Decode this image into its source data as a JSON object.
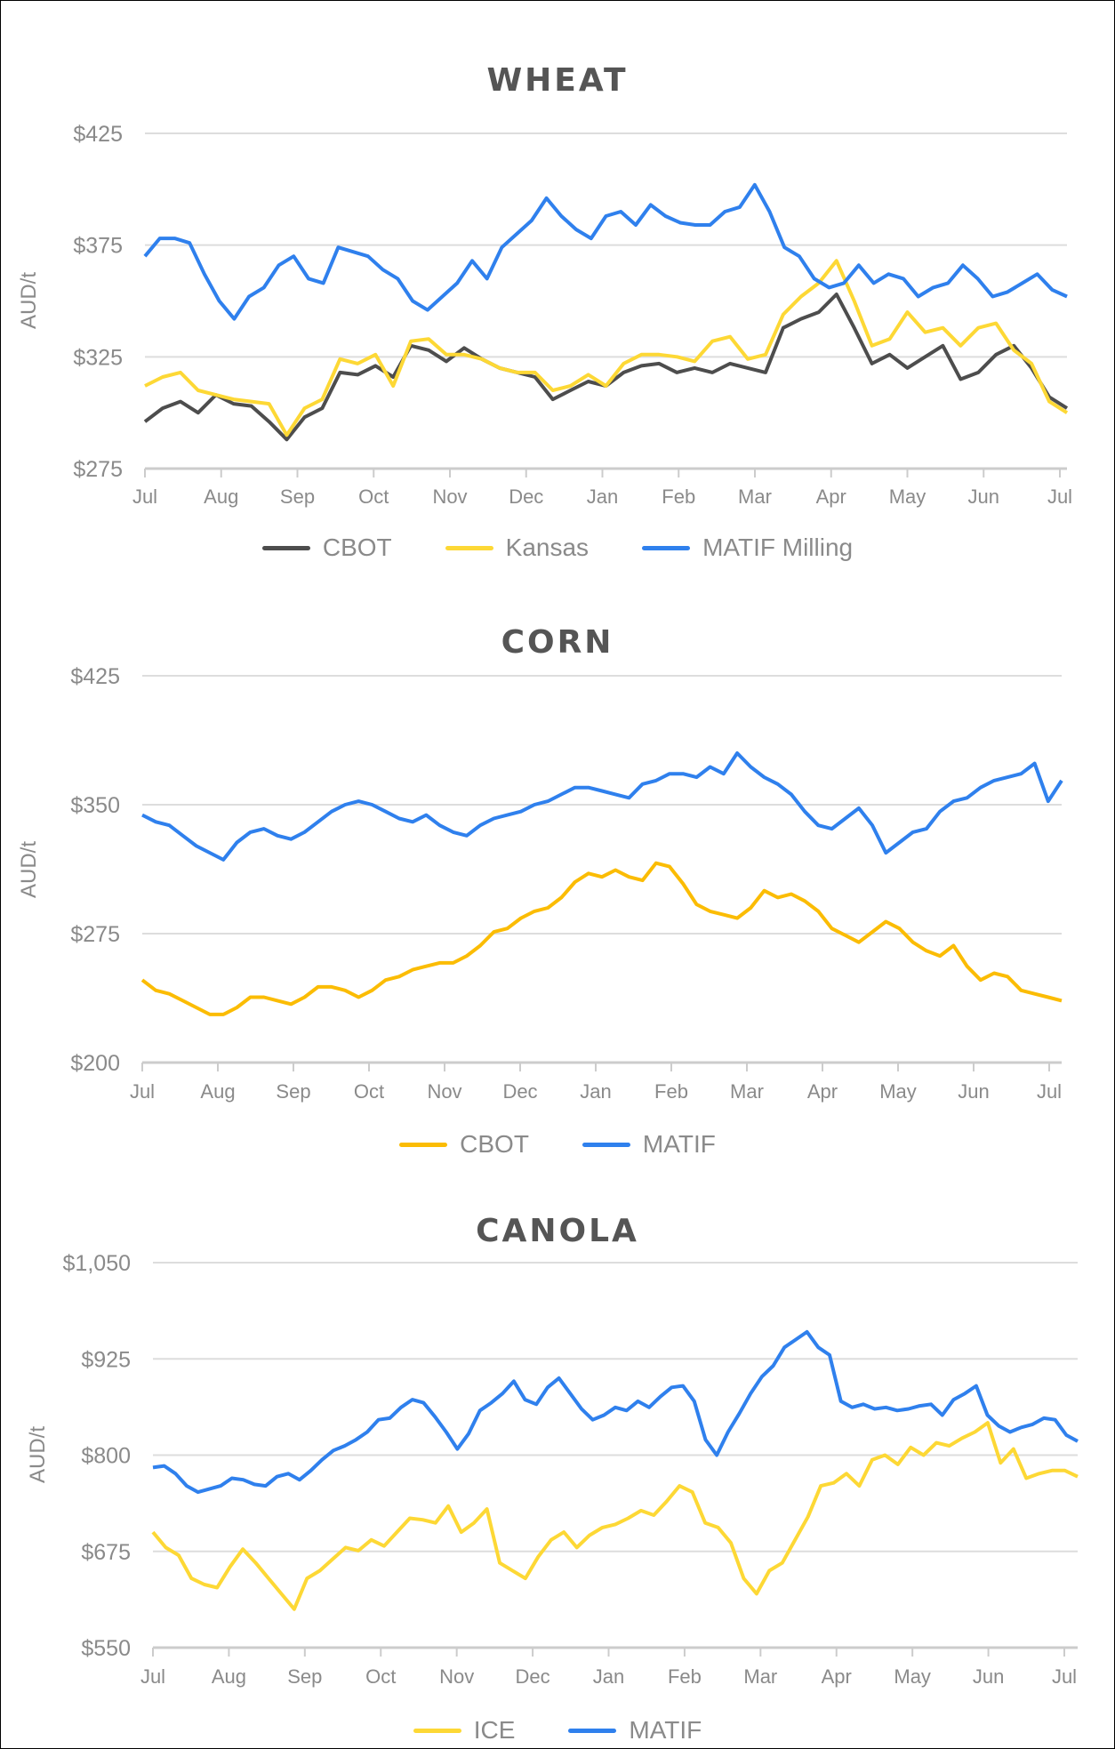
{
  "chart_data": [
    {
      "type": "line",
      "title": "WHEAT",
      "xlabel": "",
      "ylabel": "AUD/t",
      "ylim": [
        275,
        425
      ],
      "yticks": [
        "$425",
        "$375",
        "$325",
        "$275"
      ],
      "ytick_values": [
        425,
        375,
        325,
        275
      ],
      "categories": [
        "Jul",
        "Aug",
        "Sep",
        "Oct",
        "Nov",
        "Dec",
        "Jan",
        "Feb",
        "Mar",
        "Apr",
        "May",
        "Jun",
        "Jul"
      ],
      "grid": true,
      "legend_position": "bottom",
      "series": [
        {
          "name": "CBOT",
          "color": "#4d4d4d",
          "values": [
            296,
            302,
            305,
            300,
            308,
            304,
            303,
            296,
            288,
            298,
            302,
            318,
            317,
            321,
            316,
            330,
            328,
            323,
            329,
            324,
            320,
            318,
            316,
            306,
            310,
            314,
            312,
            318,
            321,
            322,
            318,
            320,
            318,
            322,
            320,
            318,
            338,
            342,
            345,
            353,
            338,
            322,
            326,
            320,
            325,
            330,
            315,
            318,
            326,
            330,
            320,
            307,
            302
          ]
        },
        {
          "name": "Kansas",
          "color": "#fdd835",
          "values": [
            312,
            316,
            318,
            310,
            308,
            306,
            305,
            304,
            290,
            302,
            306,
            324,
            322,
            326,
            312,
            332,
            333,
            326,
            326,
            324,
            320,
            318,
            318,
            310,
            312,
            317,
            312,
            322,
            326,
            326,
            325,
            323,
            332,
            334,
            324,
            326,
            344,
            352,
            358,
            368,
            350,
            330,
            333,
            345,
            336,
            338,
            330,
            338,
            340,
            328,
            322,
            305,
            300
          ]
        },
        {
          "name": "MATIF Milling",
          "color": "#2f80ed",
          "values": [
            370,
            378,
            378,
            376,
            362,
            350,
            342,
            352,
            356,
            366,
            370,
            360,
            358,
            374,
            372,
            370,
            364,
            360,
            350,
            346,
            352,
            358,
            368,
            360,
            374,
            380,
            386,
            396,
            388,
            382,
            378,
            388,
            390,
            384,
            393,
            388,
            385,
            384,
            384,
            390,
            392,
            402,
            390,
            374,
            370,
            360,
            356,
            358,
            366,
            358,
            362,
            360,
            352,
            356,
            358,
            366,
            360,
            352,
            354,
            358,
            362,
            355,
            352
          ]
        }
      ]
    },
    {
      "type": "line",
      "title": "CORN",
      "xlabel": "",
      "ylabel": "AUD/t",
      "ylim": [
        200,
        425
      ],
      "yticks": [
        "$425",
        "$350",
        "$275",
        "$200"
      ],
      "ytick_values": [
        425,
        350,
        275,
        200
      ],
      "categories": [
        "Jul",
        "Aug",
        "Sep",
        "Oct",
        "Nov",
        "Dec",
        "Jan",
        "Feb",
        "Mar",
        "Apr",
        "May",
        "Jun",
        "Jul"
      ],
      "grid": true,
      "legend_position": "bottom",
      "series": [
        {
          "name": "CBOT",
          "color": "#fbbc04",
          "values": [
            248,
            242,
            240,
            236,
            232,
            228,
            228,
            232,
            238,
            238,
            236,
            234,
            238,
            244,
            244,
            242,
            238,
            242,
            248,
            250,
            254,
            256,
            258,
            258,
            262,
            268,
            276,
            278,
            284,
            288,
            290,
            296,
            305,
            310,
            308,
            312,
            308,
            306,
            316,
            314,
            304,
            292,
            288,
            286,
            284,
            290,
            300,
            296,
            298,
            294,
            288,
            278,
            274,
            270,
            276,
            282,
            278,
            270,
            265,
            262,
            268,
            256,
            248,
            252,
            250,
            242,
            240,
            238,
            236
          ]
        },
        {
          "name": "MATIF",
          "color": "#2f80ed",
          "values": [
            344,
            340,
            338,
            332,
            326,
            322,
            318,
            328,
            334,
            336,
            332,
            330,
            334,
            340,
            346,
            350,
            352,
            350,
            346,
            342,
            340,
            344,
            338,
            334,
            332,
            338,
            342,
            344,
            346,
            350,
            352,
            356,
            360,
            360,
            358,
            356,
            354,
            362,
            364,
            368,
            368,
            366,
            372,
            368,
            380,
            372,
            366,
            362,
            356,
            346,
            338,
            336,
            342,
            348,
            338,
            322,
            328,
            334,
            336,
            346,
            352,
            354,
            360,
            364,
            366,
            368,
            374,
            352,
            364
          ]
        }
      ]
    },
    {
      "type": "line",
      "title": "CANOLA",
      "xlabel": "",
      "ylabel": "AUD/t",
      "ylim": [
        550,
        1050
      ],
      "yticks": [
        "$1,050",
        "$925",
        "$800",
        "$675",
        "$550"
      ],
      "ytick_values": [
        1050,
        925,
        800,
        675,
        550
      ],
      "categories": [
        "Jul",
        "Aug",
        "Sep",
        "Oct",
        "Nov",
        "Dec",
        "Jan",
        "Feb",
        "Mar",
        "Apr",
        "May",
        "Jun",
        "Jul"
      ],
      "grid": true,
      "legend_position": "bottom",
      "series": [
        {
          "name": "ICE",
          "color": "#fdd835",
          "values": [
            700,
            680,
            670,
            640,
            632,
            628,
            655,
            678,
            660,
            640,
            620,
            600,
            640,
            650,
            665,
            680,
            676,
            690,
            682,
            700,
            718,
            716,
            712,
            734,
            700,
            712,
            730,
            660,
            650,
            640,
            668,
            690,
            700,
            680,
            696,
            706,
            710,
            718,
            728,
            722,
            740,
            760,
            752,
            712,
            706,
            686,
            640,
            620,
            650,
            660,
            690,
            720,
            760,
            764,
            776,
            760,
            794,
            800,
            788,
            810,
            800,
            816,
            812,
            822,
            830,
            842,
            790,
            808,
            770,
            776,
            780,
            780,
            772
          ]
        },
        {
          "name": "MATIF",
          "color": "#2f80ed",
          "values": [
            784,
            786,
            776,
            760,
            752,
            756,
            760,
            770,
            768,
            762,
            760,
            772,
            776,
            768,
            780,
            794,
            806,
            812,
            820,
            830,
            846,
            848,
            862,
            872,
            868,
            850,
            830,
            808,
            828,
            858,
            868,
            880,
            896,
            872,
            866,
            888,
            900,
            880,
            860,
            846,
            852,
            862,
            858,
            870,
            862,
            876,
            888,
            890,
            870,
            820,
            800,
            830,
            854,
            880,
            902,
            916,
            940,
            950,
            960,
            940,
            930,
            870,
            862,
            866,
            860,
            862,
            858,
            860,
            864,
            866,
            852,
            872,
            880,
            890,
            852,
            838,
            830,
            836,
            840,
            848,
            846,
            826,
            818
          ]
        }
      ]
    }
  ],
  "charts": {
    "wheat": {
      "title": "WHEAT",
      "ylabel": "AUD/t",
      "legend": [
        "CBOT",
        "Kansas",
        "MATIF Milling"
      ]
    },
    "corn": {
      "title": "CORN",
      "ylabel": "AUD/t",
      "legend": [
        "CBOT",
        "MATIF"
      ]
    },
    "canola": {
      "title": "CANOLA",
      "ylabel": "AUD/t",
      "legend": [
        "ICE",
        "MATIF"
      ]
    }
  }
}
